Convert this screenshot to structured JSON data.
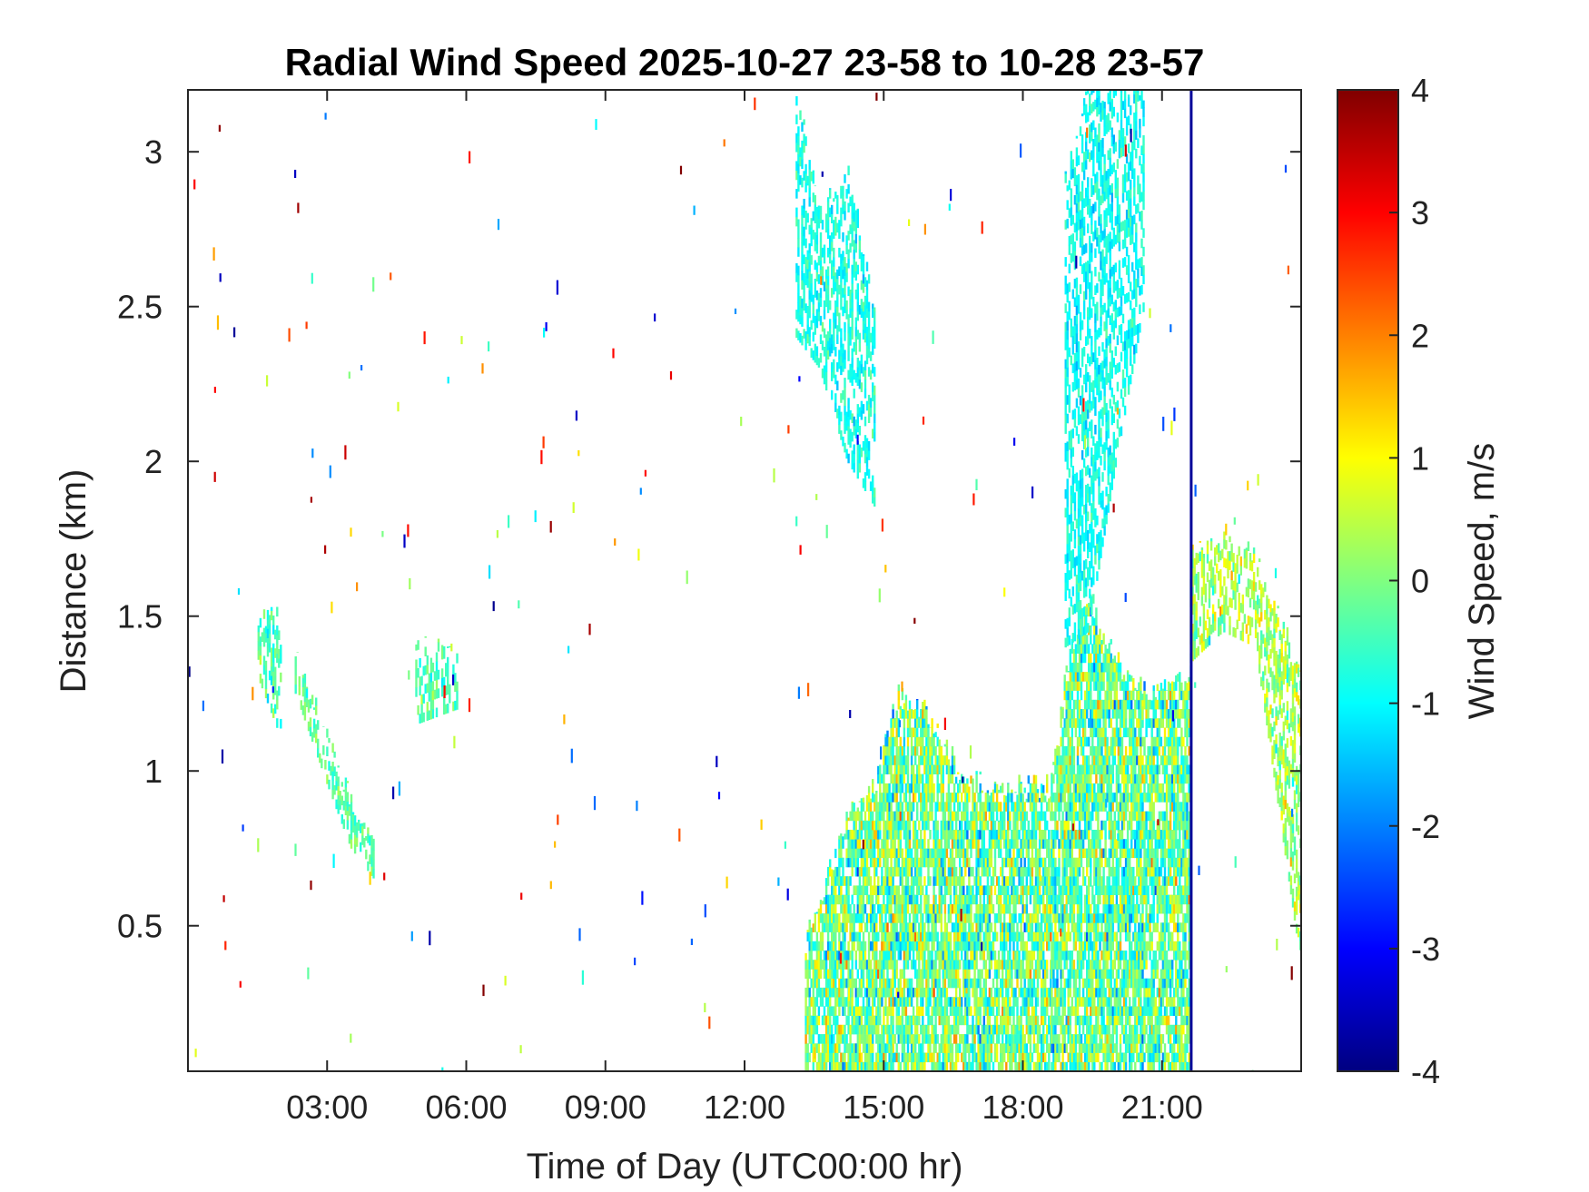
{
  "chart_data": {
    "type": "heatmap",
    "title": "Radial Wind Speed 2025-10-27 23-58 to 10-28 23-57",
    "xlabel": "Time of Day (UTC00:00 hr)",
    "ylabel": "Distance (km)",
    "colorbar_label": "Wind Speed, m/s",
    "x_unit": "hours UTC",
    "xlim": [
      0,
      24
    ],
    "ylim": [
      0.03,
      3.2
    ],
    "clim": [
      -4,
      4
    ],
    "colormap": "jet",
    "grid": false,
    "x_ticks": [
      {
        "value": 3,
        "label": "03:00"
      },
      {
        "value": 6,
        "label": "06:00"
      },
      {
        "value": 9,
        "label": "09:00"
      },
      {
        "value": 12,
        "label": "12:00"
      },
      {
        "value": 15,
        "label": "15:00"
      },
      {
        "value": 18,
        "label": "18:00"
      },
      {
        "value": 21,
        "label": "21:00"
      }
    ],
    "y_ticks": [
      {
        "value": 0.5,
        "label": "0.5"
      },
      {
        "value": 1,
        "label": "1"
      },
      {
        "value": 1.5,
        "label": "1.5"
      },
      {
        "value": 2,
        "label": "2"
      },
      {
        "value": 2.5,
        "label": "2.5"
      },
      {
        "value": 3,
        "label": "3"
      }
    ],
    "colorbar_ticks": [
      {
        "value": 4,
        "label": "4"
      },
      {
        "value": 3,
        "label": "3"
      },
      {
        "value": 2,
        "label": "2"
      },
      {
        "value": 1,
        "label": "1"
      },
      {
        "value": 0,
        "label": "0"
      },
      {
        "value": -1,
        "label": "-1"
      },
      {
        "value": -2,
        "label": "-2"
      },
      {
        "value": -3,
        "label": "-3"
      },
      {
        "value": -4,
        "label": "-4"
      }
    ],
    "regions": [
      {
        "name": "boundary-layer",
        "x_start": 13.3,
        "x_end": 18.6,
        "y_bottom": 0.03,
        "top": [
          [
            13.3,
            0.45
          ],
          [
            14.2,
            0.85
          ],
          [
            14.8,
            0.95
          ],
          [
            15.3,
            1.25
          ],
          [
            15.9,
            1.2
          ],
          [
            16.6,
            1.0
          ],
          [
            17.2,
            0.95
          ],
          [
            18.6,
            0.95
          ]
        ],
        "mean_speed": -0.1,
        "spread": 1.4
      },
      {
        "name": "boundary-layer-late",
        "x_start": 18.6,
        "x_end": 21.6,
        "y_bottom": 0.03,
        "top": [
          [
            18.6,
            1.0
          ],
          [
            19.0,
            1.4
          ],
          [
            19.4,
            1.55
          ],
          [
            20.0,
            1.35
          ],
          [
            20.8,
            1.25
          ],
          [
            21.6,
            1.3
          ]
        ],
        "mean_speed": -0.2,
        "spread": 1.3
      },
      {
        "name": "residual-layer-evening",
        "x_start": 21.6,
        "x_end": 24.0,
        "top": [
          [
            21.6,
            1.7
          ],
          [
            22.3,
            1.75
          ],
          [
            23.0,
            1.7
          ],
          [
            24.0,
            1.3
          ]
        ],
        "bottom": [
          [
            21.6,
            1.35
          ],
          [
            22.3,
            1.45
          ],
          [
            23.0,
            1.4
          ],
          [
            24.0,
            0.35
          ]
        ],
        "mean_speed": 0.3,
        "spread": 0.9
      },
      {
        "name": "cloud-layer-afternoon",
        "x_start": 13.1,
        "x_end": 14.8,
        "top": [
          [
            13.1,
            3.2
          ],
          [
            13.6,
            2.8
          ],
          [
            14.2,
            2.95
          ],
          [
            14.8,
            2.5
          ]
        ],
        "bottom": [
          [
            13.1,
            2.4
          ],
          [
            13.6,
            2.3
          ],
          [
            14.2,
            2.0
          ],
          [
            14.8,
            1.85
          ]
        ],
        "mean_speed": -0.8,
        "spread": 0.5
      },
      {
        "name": "cloud-layer-evening",
        "x_start": 18.9,
        "x_end": 20.6,
        "top": [
          [
            18.9,
            2.9
          ],
          [
            19.4,
            3.2
          ],
          [
            20.6,
            3.2
          ]
        ],
        "bottom": [
          [
            18.9,
            1.4
          ],
          [
            19.4,
            1.45
          ],
          [
            20.0,
            2.0
          ],
          [
            20.6,
            2.5
          ]
        ],
        "mean_speed": -0.9,
        "spread": 0.5
      },
      {
        "name": "night-streak-a",
        "x_start": 1.5,
        "x_end": 2.0,
        "top": [
          [
            1.5,
            1.5
          ],
          [
            2.0,
            1.5
          ]
        ],
        "bottom": [
          [
            1.5,
            1.3
          ],
          [
            2.0,
            1.1
          ]
        ],
        "mean_speed": -0.4,
        "spread": 0.6
      },
      {
        "name": "night-streak-b",
        "x_start": 2.3,
        "x_end": 4.0,
        "top": [
          [
            2.3,
            1.37
          ],
          [
            3.0,
            1.1
          ],
          [
            3.5,
            0.9
          ],
          [
            4.0,
            0.75
          ]
        ],
        "bottom": [
          [
            2.3,
            1.25
          ],
          [
            3.0,
            0.95
          ],
          [
            3.5,
            0.75
          ],
          [
            4.0,
            0.65
          ]
        ],
        "mean_speed": -0.3,
        "spread": 0.6
      },
      {
        "name": "night-streak-c",
        "x_start": 4.9,
        "x_end": 5.8,
        "top": [
          [
            4.9,
            1.4
          ],
          [
            5.8,
            1.38
          ]
        ],
        "bottom": [
          [
            4.9,
            1.15
          ],
          [
            5.8,
            1.2
          ]
        ],
        "mean_speed": -0.4,
        "spread": 0.6
      }
    ],
    "column_features": [
      {
        "name": "dark-blue-profile",
        "x": 21.6,
        "y_bottom": 0.03,
        "y_top": 3.2,
        "speed": -3.8
      }
    ]
  }
}
